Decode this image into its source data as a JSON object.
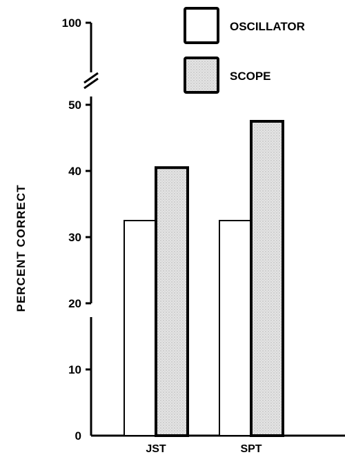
{
  "chart_data": {
    "type": "bar",
    "categories": [
      "JST",
      "SPT"
    ],
    "series": [
      {
        "name": "OSCILLATOR",
        "values": [
          32.5,
          32.5
        ],
        "color": "#ffffff"
      },
      {
        "name": "SCOPE",
        "values": [
          40.5,
          47.5
        ],
        "color": "#dcdcdc"
      }
    ],
    "xlabel": "",
    "ylabel": "PERCENT CORRECT",
    "y_ticks": [
      "0",
      "10",
      "20",
      "30",
      "40",
      "50",
      "100"
    ],
    "ylim": [
      0,
      50
    ],
    "axis_break": true,
    "legend_position": "top-right",
    "grid": false
  }
}
